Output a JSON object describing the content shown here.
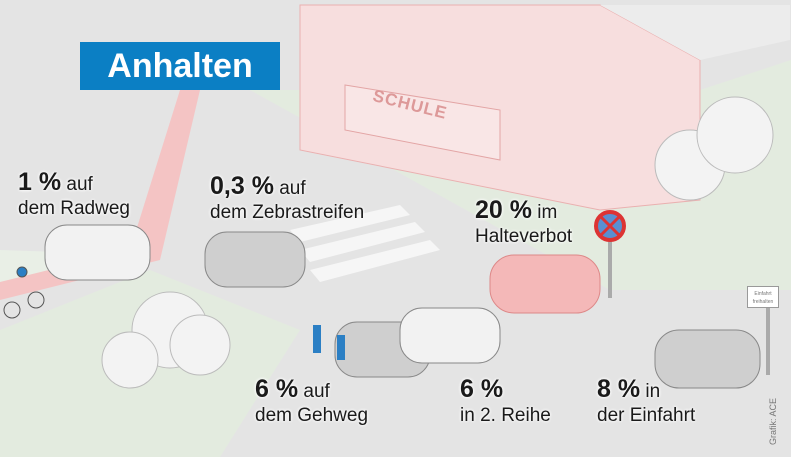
{
  "title": "Anhalten",
  "building_sign": "SCHULE",
  "entrance_sign": "Einfahrt freihalten",
  "credit": "Grafik: ACE",
  "labels": [
    {
      "value": "1 %",
      "line1": "auf",
      "line2": "dem Radweg"
    },
    {
      "value": "0,3 %",
      "line1": "auf",
      "line2": "dem Zebrastreifen"
    },
    {
      "value": "20 %",
      "line1": "im",
      "line2": "Halteverbot"
    },
    {
      "value": "6 %",
      "line1": "auf",
      "line2": "dem Gehweg"
    },
    {
      "value": "6 %",
      "line1": "",
      "line2": "in 2. Reihe"
    },
    {
      "value": "8 %",
      "line1": "in",
      "line2": "der Einfahrt"
    }
  ],
  "colors": {
    "accent": "#0b7fc4",
    "highlight": "#f2a0a0"
  }
}
